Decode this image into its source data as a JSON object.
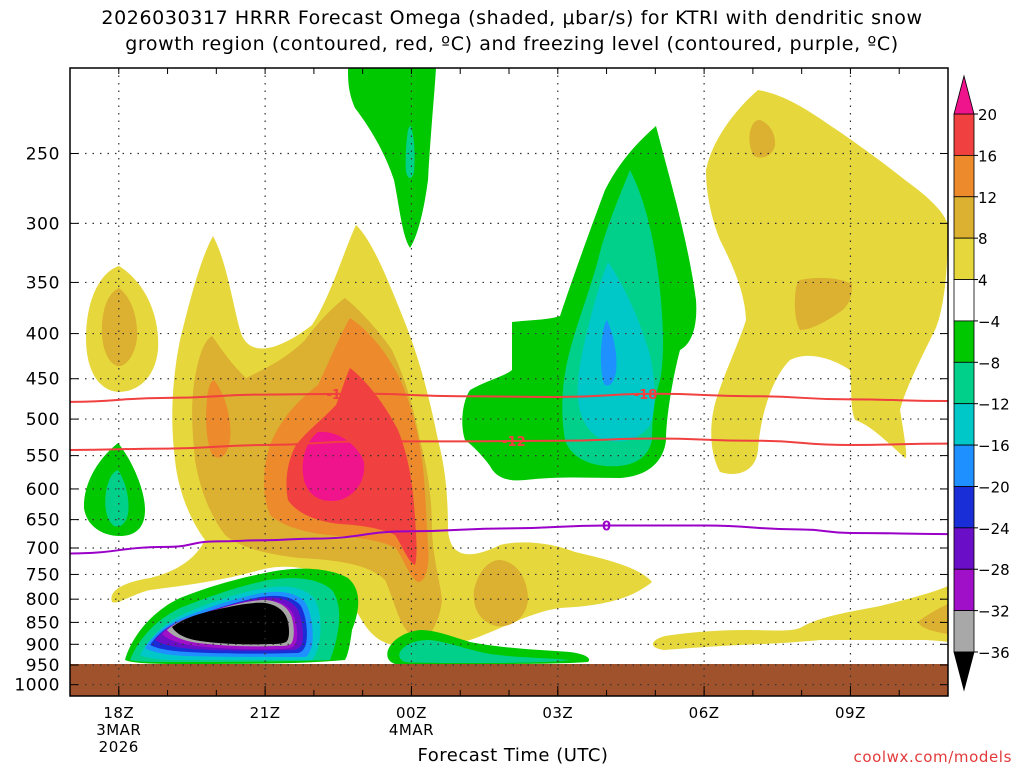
{
  "chart_data": {
    "type": "heatmap",
    "title_line1": "2026030317 HRRR Forecast Omega (shaded, μbar/s) for KTRI with dendritic snow",
    "title_line2": "growth region (contoured, red, ºC) and freezing level (contoured, purple, ºC)",
    "xlabel": "Forecast Time (UTC)",
    "ylabel": "",
    "credit": "coolwx.com/models",
    "x_axis": {
      "unit": "hours since 2026-03-03 17Z",
      "range": [
        17,
        35
      ],
      "ticks": [
        {
          "value": 18,
          "lines": [
            "18Z",
            "3MAR",
            "2026"
          ]
        },
        {
          "value": 21,
          "lines": [
            "21Z"
          ]
        },
        {
          "value": 24,
          "lines": [
            "00Z",
            "4MAR"
          ]
        },
        {
          "value": 27,
          "lines": [
            "03Z"
          ]
        },
        {
          "value": 30,
          "lines": [
            "06Z"
          ]
        },
        {
          "value": 33,
          "lines": [
            "09Z"
          ]
        }
      ]
    },
    "y_axis": {
      "unit": "hPa",
      "scale": "log",
      "range": [
        1030,
        200
      ],
      "ticks": [
        250,
        300,
        350,
        400,
        450,
        500,
        550,
        600,
        650,
        700,
        750,
        800,
        850,
        900,
        950,
        1000
      ]
    },
    "surface_band": {
      "top_hpa": 968,
      "color": "#a0522d"
    },
    "colorbar": {
      "levels": [
        -36,
        -32,
        -28,
        -24,
        -20,
        -16,
        -12,
        -8,
        -4,
        4,
        8,
        12,
        16,
        20
      ],
      "label_values": [
        "20",
        "16",
        "12",
        "8",
        "4",
        "−4",
        "−8",
        "−12",
        "−16",
        "−20",
        "−24",
        "−28",
        "−32",
        "−36"
      ],
      "colors": {
        "lt_-36": "#000000",
        "-36_-32": "#a8a8a8",
        "-32_-28": "#a010c8",
        "-28_-24": "#6a0ec8",
        "-24_-20": "#1a2ed8",
        "-20_-16": "#1e90ff",
        "-16_-12": "#00c8c8",
        "-12_-8": "#00d08a",
        "-8_-4": "#00c800",
        "-4_4": "#ffffff",
        "4_8": "#e6d83c",
        "8_12": "#dcb030",
        "12_16": "#ec8a2c",
        "16_20": "#f04040",
        "gt_20": "#f0148c"
      }
    },
    "contours": [
      {
        "name": "dendritic -18C",
        "label": "-18",
        "color": "#f04040",
        "points": [
          [
            17,
            478
          ],
          [
            19,
            473
          ],
          [
            21,
            469
          ],
          [
            23,
            468
          ],
          [
            25,
            471
          ],
          [
            27,
            472
          ],
          [
            29,
            468
          ],
          [
            31,
            471
          ],
          [
            33,
            475
          ],
          [
            35,
            477
          ]
        ]
      },
      {
        "name": "dendritic -12C",
        "label": "-12",
        "color": "#f04040",
        "points": [
          [
            17,
            542
          ],
          [
            19,
            540
          ],
          [
            21,
            535
          ],
          [
            23,
            530
          ],
          [
            25,
            530
          ],
          [
            27,
            529
          ],
          [
            29,
            526
          ],
          [
            31,
            529
          ],
          [
            33,
            535
          ],
          [
            35,
            533
          ]
        ]
      },
      {
        "name": "freezing level 0C",
        "label": "0",
        "color": "#9a00c8",
        "points": [
          [
            17,
            710
          ],
          [
            19,
            698
          ],
          [
            20,
            688
          ],
          [
            21,
            686
          ],
          [
            22,
            683
          ],
          [
            24,
            670
          ],
          [
            26,
            665
          ],
          [
            28,
            660
          ],
          [
            30,
            660
          ],
          [
            32,
            667
          ],
          [
            33,
            673
          ],
          [
            35,
            675
          ]
        ]
      }
    ],
    "omega_features": [
      {
        "desc": "strong rising motion core",
        "center_x": 21.0,
        "center_p": 900,
        "min_value": "< -36"
      },
      {
        "desc": "strong sinking motion core",
        "center_x": 22.2,
        "center_p": 570,
        "max_value": "> 20"
      },
      {
        "desc": "mid-level rising motion",
        "center_x": 28.0,
        "center_p": 430,
        "min_value": "-20"
      },
      {
        "desc": "upper-level rising motion",
        "center_x": 23.9,
        "center_p": 230,
        "min_value": "-12"
      }
    ]
  }
}
